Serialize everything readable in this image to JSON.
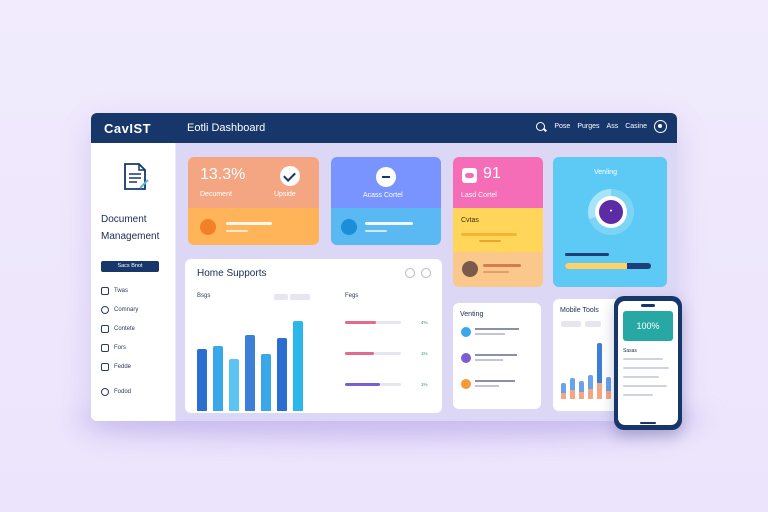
{
  "colors": {
    "navy": "#17376b",
    "background": "#ece4fc",
    "main_area": "#ddd7f6",
    "orange": "#ffb45a",
    "salmon": "#f4a683",
    "blue": "#7a94ff",
    "sky": "#5ab8f2",
    "pink": "#f56cb7",
    "yellow": "#ffd65a",
    "cyan": "#5ccaf4",
    "purple": "#5b2ca4",
    "teal": "#27a8a5"
  },
  "topbar": {
    "brand": "CavIST",
    "title": "Eotli Dashboard",
    "nav": [
      "Pose",
      "Purges",
      "Ass",
      "Casine"
    ],
    "search_icon": "search-icon",
    "settings_icon": "gear-icon"
  },
  "sidebar": {
    "logo_icon": "document-icon",
    "title_line1": "Document",
    "title_line2": "Management",
    "button_label": "Sacs Bnot",
    "items": [
      {
        "label": "Twas",
        "icon": "home-icon"
      },
      {
        "label": "Comnary",
        "icon": "compass-icon"
      },
      {
        "label": "Contete",
        "icon": "folder-icon"
      },
      {
        "label": "Fors",
        "icon": "tag-icon"
      },
      {
        "label": "Fedde",
        "icon": "file-icon"
      },
      {
        "label": "Fodod",
        "icon": "settings-icon"
      }
    ]
  },
  "cards": {
    "document": {
      "value": "13.3%",
      "label": "Decument",
      "side_label": "Upside",
      "icon": "check-icon"
    },
    "access": {
      "label": "Acass Cortel",
      "icon": "minus-icon",
      "footer_icon": "plus-icon"
    },
    "lead": {
      "value": "91",
      "label": "Lasd Cortel",
      "mid_label": "Cvtas",
      "icon": "chat-icon"
    },
    "verifying": {
      "label": "Venling",
      "progress": 0.72
    }
  },
  "home_supports": {
    "title": "Home Supports",
    "left_sub": "Bsgs",
    "right_sub": "Fegs",
    "bars": [
      {
        "value": 46,
        "color": "#2a6fcf"
      },
      {
        "value": 48,
        "color": "#3aa7ea"
      },
      {
        "value": 38,
        "color": "#5cc4f2"
      },
      {
        "value": 56,
        "color": "#3c7fd8"
      },
      {
        "value": 42,
        "color": "#3aa7ea"
      },
      {
        "value": 54,
        "color": "#2a6fcf"
      },
      {
        "value": 66,
        "color": "#2bb7ec"
      }
    ],
    "rows": [
      {
        "pct": "4%",
        "fill": 0.55,
        "color": "#e36a8a"
      },
      {
        "pct": "1%",
        "fill": 0.52,
        "color": "#e36a8a"
      },
      {
        "pct": "1%",
        "fill": 0.62,
        "color": "#7b5fd1"
      }
    ]
  },
  "venting": {
    "title": "Venting",
    "items": [
      {
        "color": "#3aa7ea"
      },
      {
        "color": "#7b5fd1"
      },
      {
        "color": "#f59a3a"
      }
    ]
  },
  "mobile_tools": {
    "title": "Mobile Tools",
    "bars": [
      {
        "a": 6,
        "b": 10
      },
      {
        "a": 9,
        "b": 12
      },
      {
        "a": 7,
        "b": 11
      },
      {
        "a": 10,
        "b": 14
      },
      {
        "a": 16,
        "b": 40
      },
      {
        "a": 8,
        "b": 14
      }
    ]
  },
  "phone": {
    "hero_value": "100%",
    "label": "Sasas"
  }
}
